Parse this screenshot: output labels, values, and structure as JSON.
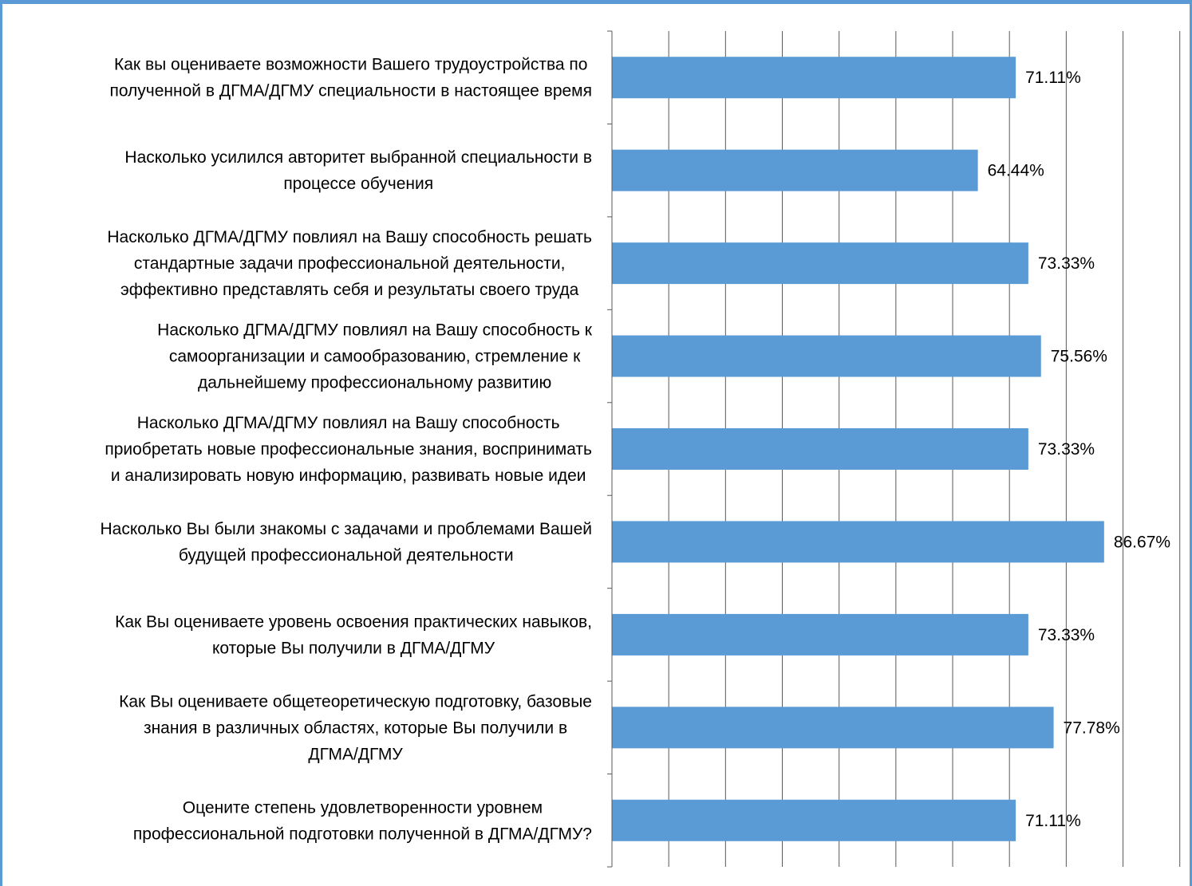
{
  "colors": {
    "bar": "#5b9bd5",
    "gridline": "#595959",
    "frame": "#5b9bd5",
    "text": "#000000"
  },
  "chart_data": {
    "type": "bar",
    "orientation": "horizontal",
    "title": "",
    "xlabel": "",
    "ylabel": "",
    "xlim": [
      0,
      100
    ],
    "grid": true,
    "legend": "none",
    "categories": [
      [
        "Как вы оцениваете возможности Вашего трудоустройства по",
        "полученной в ДГМА/ДГМУ специальности в настоящее время"
      ],
      [
        "Насколько усилился авторитет выбранной специальности в",
        "процессе обучения"
      ],
      [
        "Насколько ДГМА/ДГМУ повлиял на Вашу способность решать",
        "стандартные задачи профессиональной деятельности,",
        "эффективно представлять себя и результаты своего труда"
      ],
      [
        "Насколько ДГМА/ДГМУ повлиял на Вашу способность к",
        "самоорганизации и самообразованию, стремление к",
        "дальнейшему профессиональному развитию"
      ],
      [
        "Насколько ДГМА/ДГМУ повлиял на Вашу способность",
        "приобретать новые профессиональные знания, воспринимать",
        "и анализировать новую информацию, развивать новые идеи"
      ],
      [
        "Насколько Вы были знакомы с задачами и проблемами Вашей",
        "будущей профессиональной деятельности"
      ],
      [
        "Как Вы оцениваете уровень  освоения практических навыков,",
        "которые Вы получили в ДГМА/ДГМУ"
      ],
      [
        "Как Вы оцениваете общетеоретическую подготовку, базовые",
        "знания в различных областях, которые Вы получили в",
        "ДГМА/ДГМУ"
      ],
      [
        "Оцените степень удовлетворенности  уровнем",
        "профессиональной подготовки полученной в ДГМА/ДГМУ?"
      ]
    ],
    "values": [
      71.11,
      64.44,
      73.33,
      75.56,
      73.33,
      86.67,
      73.33,
      77.78,
      71.11
    ],
    "value_labels": [
      "71.11%",
      "64.44%",
      "73.33%",
      "75.56%",
      "73.33%",
      "86.67%",
      "73.33%",
      "77.78%",
      "71.11%"
    ]
  }
}
